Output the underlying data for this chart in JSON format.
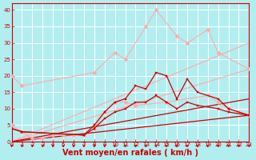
{
  "background_color": "#b2eef0",
  "grid_color": "#ffffff",
  "xlabel": "Vent moyen/en rafales ( km/h )",
  "xlabel_color": "#cc0000",
  "xlabel_fontsize": 7,
  "tick_color": "#cc0000",
  "ylim": [
    0,
    42
  ],
  "xlim": [
    0,
    23
  ],
  "yticks": [
    0,
    5,
    10,
    15,
    20,
    25,
    30,
    35,
    40
  ],
  "xticks": [
    0,
    1,
    2,
    3,
    4,
    5,
    6,
    7,
    8,
    9,
    10,
    11,
    12,
    13,
    14,
    15,
    16,
    17,
    18,
    19,
    20,
    21,
    22,
    23
  ],
  "line_light_peak": {
    "x": [
      0,
      1,
      8,
      10,
      11,
      13,
      14,
      16,
      17,
      19,
      20,
      23
    ],
    "y": [
      20,
      17,
      21,
      27,
      25,
      35,
      40,
      32,
      30,
      34,
      27,
      22
    ],
    "color": "#ffaaaa",
    "linewidth": 0.8,
    "marker": "D",
    "markersize": 2.5
  },
  "line_light_low": {
    "x": [
      0,
      1,
      2,
      3,
      4,
      5,
      6,
      7,
      8,
      9,
      10,
      11,
      12,
      15,
      19,
      20,
      21,
      22,
      23
    ],
    "y": [
      5,
      3,
      1,
      1,
      2,
      2,
      2,
      2,
      4,
      9,
      12,
      12,
      11,
      12,
      14,
      12,
      10,
      9,
      8
    ],
    "color": "#ffaaaa",
    "linewidth": 0.8,
    "marker": "D",
    "markersize": 2.5
  },
  "line_straight_light1": {
    "x": [
      0,
      23
    ],
    "y": [
      0,
      30
    ],
    "color": "#ffaaaa",
    "linewidth": 0.8
  },
  "line_straight_light2": {
    "x": [
      0,
      23
    ],
    "y": [
      0,
      22
    ],
    "color": "#ffaaaa",
    "linewidth": 0.8
  },
  "line_straight_red1": {
    "x": [
      0,
      23
    ],
    "y": [
      0,
      13
    ],
    "color": "#cc0000",
    "linewidth": 0.9
  },
  "line_straight_red2": {
    "x": [
      0,
      23
    ],
    "y": [
      0,
      8
    ],
    "color": "#cc0000",
    "linewidth": 0.9
  },
  "line_red_upper": {
    "x": [
      0,
      1,
      7,
      8,
      9,
      10,
      11,
      12,
      13,
      14,
      15,
      16,
      17,
      18,
      20,
      21,
      23
    ],
    "y": [
      4,
      3,
      2,
      5,
      9,
      12,
      13,
      17,
      16,
      21,
      20,
      13,
      19,
      15,
      13,
      10,
      8
    ],
    "color": "#cc0000",
    "linewidth": 0.9,
    "marker": "s",
    "markersize": 2.0
  },
  "line_red_lower": {
    "x": [
      0,
      1,
      7,
      8,
      9,
      10,
      11,
      12,
      13,
      14,
      15,
      16,
      17,
      18,
      20,
      21,
      23
    ],
    "y": [
      4,
      3,
      2,
      4,
      7,
      9,
      10,
      12,
      12,
      14,
      12,
      10,
      12,
      11,
      10,
      9,
      8
    ],
    "color": "#cc0000",
    "linewidth": 0.9,
    "marker": "s",
    "markersize": 2.0
  }
}
